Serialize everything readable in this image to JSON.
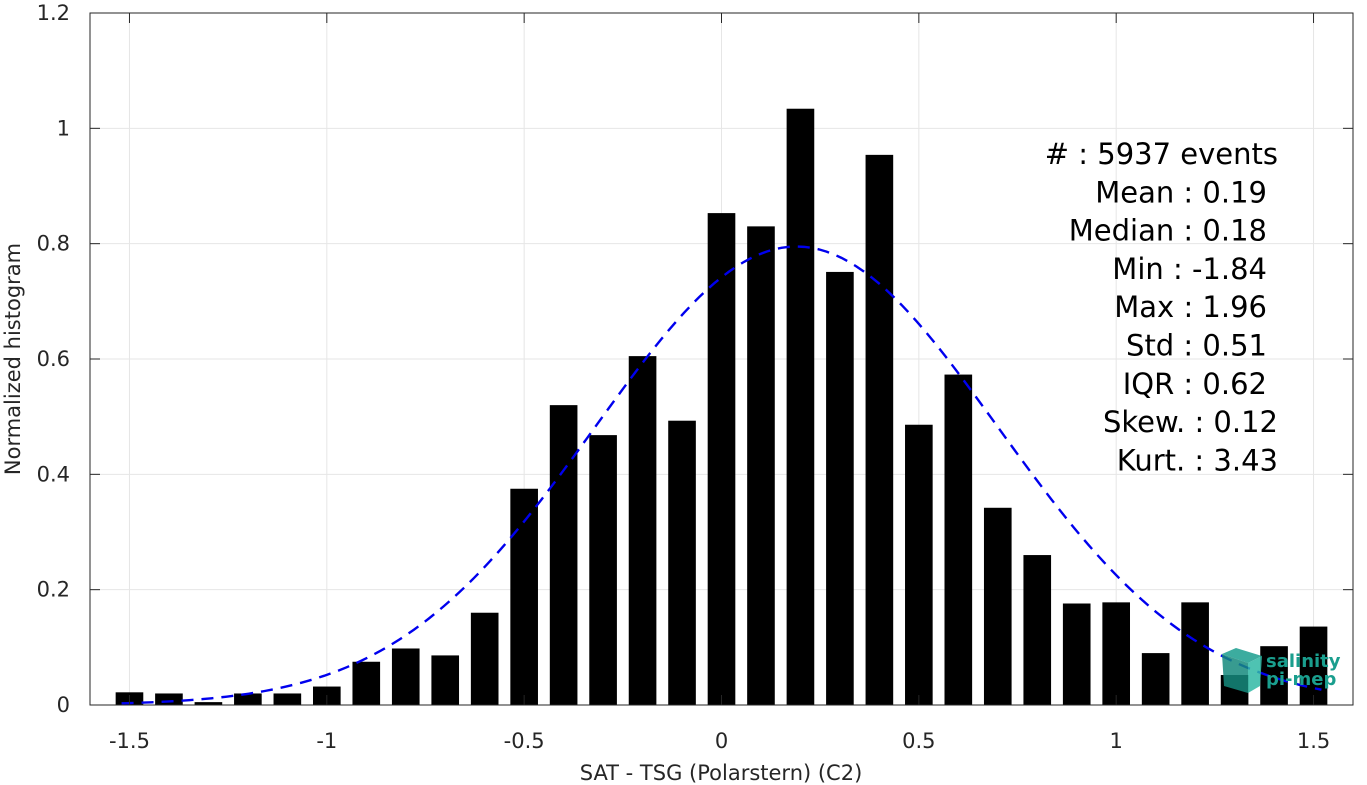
{
  "chart_data": {
    "type": "bar",
    "xlabel": "SAT - TSG (Polarstern) (C2)",
    "ylabel": "Normalized histogram",
    "xlim": [
      -1.6,
      1.6
    ],
    "ylim": [
      0,
      1.2
    ],
    "grid": true,
    "xticks": [
      -1.5,
      -1,
      -0.5,
      0,
      0.5,
      1,
      1.5
    ],
    "xtick_labels": [
      "-1.5",
      "-1",
      "-0.5",
      "0",
      "0.5",
      "1",
      "1.5"
    ],
    "yticks": [
      0,
      0.2,
      0.4,
      0.6,
      0.8,
      1,
      1.2
    ],
    "ytick_labels": [
      "0",
      "0.2",
      "0.4",
      "0.6",
      "0.8",
      "1",
      "1.2"
    ],
    "bar_width": 0.07,
    "bars": {
      "x": [
        -1.5,
        -1.4,
        -1.3,
        -1.2,
        -1.1,
        -1.0,
        -0.9,
        -0.8,
        -0.7,
        -0.6,
        -0.5,
        -0.4,
        -0.3,
        -0.2,
        -0.1,
        0.0,
        0.1,
        0.2,
        0.3,
        0.4,
        0.5,
        0.6,
        0.7,
        0.8,
        0.9,
        1.0,
        1.1,
        1.2,
        1.3,
        1.4,
        1.5
      ],
      "values": [
        0.022,
        0.02,
        0.005,
        0.02,
        0.02,
        0.032,
        0.075,
        0.098,
        0.086,
        0.16,
        0.375,
        0.52,
        0.468,
        0.605,
        0.493,
        0.853,
        0.83,
        1.034,
        0.751,
        0.954,
        0.486,
        0.573,
        0.342,
        0.26,
        0.176,
        0.178,
        0.09,
        0.178,
        0.052,
        0.102,
        0.136
      ],
      "color": "#000000"
    },
    "fit": {
      "type": "normal",
      "mean": 0.19,
      "std": 0.51,
      "peak": 0.795,
      "x_range": [
        -1.52,
        1.52
      ],
      "color": "#0000ee",
      "style": "dashed"
    },
    "stats": [
      {
        "label": "#  : 5937 events",
        "anchor": "end-offset"
      },
      {
        "label": "Mean : 0.19"
      },
      {
        "label": "Median : 0.18"
      },
      {
        "label": "Min : -1.84"
      },
      {
        "label": "Max : 1.96"
      },
      {
        "label": "Std : 0.51"
      },
      {
        "label": "IQR : 0.62"
      },
      {
        "label": "Skew. : 0.12",
        "anchor": "end-offset"
      },
      {
        "label": "Kurt. : 3.43",
        "anchor": "end-offset"
      }
    ]
  },
  "logo": {
    "line1": "salinity",
    "line2": "pi-mep",
    "color": "#1a9e8e"
  }
}
